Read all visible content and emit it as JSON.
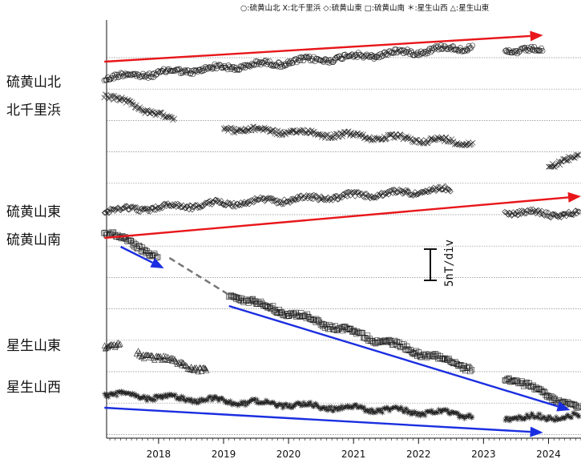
{
  "legend": {
    "text": "○:硫黄山北 X:北千里浜 ◇:硫黄山東 □:硫黄山南 ＊:星生山西 △:星生山東"
  },
  "scale_label": "5nT/div",
  "chart_data": {
    "type": "scatter",
    "x_ticks": [
      "2018",
      "2019",
      "2020",
      "2021",
      "2022",
      "2023",
      "2024"
    ],
    "xlim": [
      "2017-03",
      "2024-07"
    ],
    "grid": "horizontal dotted",
    "scale": "5nT/div",
    "series": [
      {
        "name": "硫黄山北",
        "marker": "circle",
        "label_y": 100,
        "segments": [
          {
            "x": [
              "2017-03",
              "2022-11"
            ],
            "y": [
              97,
              58
            ]
          },
          {
            "x": [
              "2023-05",
              "2023-12"
            ],
            "y": [
              63,
              64
            ]
          }
        ]
      },
      {
        "name": "北千里浜",
        "marker": "x",
        "label_y": 135,
        "segments": [
          {
            "x": [
              "2017-03",
              "2018-04"
            ],
            "y": [
              118,
              150
            ]
          },
          {
            "x": [
              "2019-01",
              "2022-11"
            ],
            "y": [
              160,
              178
            ]
          },
          {
            "x": [
              "2024-01",
              "2024-07"
            ],
            "y": [
              205,
              195
            ]
          }
        ]
      },
      {
        "name": "硫黄山東",
        "marker": "diamond",
        "label_y": 262,
        "segments": [
          {
            "x": [
              "2017-03",
              "2022-07"
            ],
            "y": [
              263,
              237
            ]
          },
          {
            "x": [
              "2023-05",
              "2024-07"
            ],
            "y": [
              265,
              268
            ]
          }
        ]
      },
      {
        "name": "硫黄山南",
        "marker": "square",
        "label_y": 297,
        "segments": [
          {
            "x": [
              "2017-03",
              "2018-01"
            ],
            "y": [
              287,
              320
            ]
          },
          {
            "x": [
              "2019-02",
              "2022-11"
            ],
            "y": [
              368,
              460
            ]
          },
          {
            "x": [
              "2023-05",
              "2024-07"
            ],
            "y": [
              470,
              510
            ]
          }
        ]
      },
      {
        "name": "星生山東",
        "marker": "triangle",
        "label_y": 429,
        "segments": [
          {
            "x": [
              "2017-03",
              "2017-06"
            ],
            "y": [
              430,
              432
            ]
          },
          {
            "x": [
              "2017-09",
              "2018-10"
            ],
            "y": [
              440,
              462
            ]
          }
        ]
      },
      {
        "name": "星生山西",
        "marker": "star",
        "label_y": 481,
        "segments": [
          {
            "x": [
              "2017-03",
              "2022-11"
            ],
            "y": [
              492,
              518
            ]
          },
          {
            "x": [
              "2023-05",
              "2024-07"
            ],
            "y": [
              522,
              520
            ]
          }
        ]
      }
    ],
    "arrows": [
      {
        "color": "red",
        "from": [
          "2017-03",
          77
        ],
        "to": [
          "2023-12",
          44
        ]
      },
      {
        "color": "red",
        "from": [
          "2017-03",
          297
        ],
        "to": [
          "2024-07",
          245
        ]
      },
      {
        "color": "blue",
        "from": [
          "2017-06",
          308
        ],
        "to": [
          "2018-02",
          335
        ]
      },
      {
        "color": "blue",
        "from": [
          "2019-02",
          382
        ],
        "to": [
          "2024-05",
          512
        ]
      },
      {
        "color": "blue",
        "from": [
          "2017-03",
          509
        ],
        "to": [
          "2023-12",
          540
        ]
      }
    ],
    "dashed_connector": {
      "color": "gray",
      "from": [
        "2018-03",
        322
      ],
      "to": [
        "2019-02",
        368
      ]
    }
  }
}
